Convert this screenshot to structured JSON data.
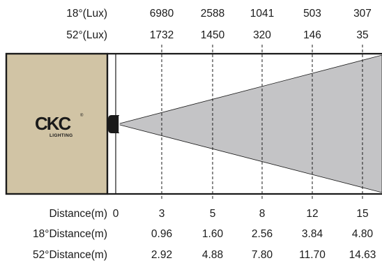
{
  "rows": {
    "lux18_label": "18°(Lux)",
    "lux52_label": "52°(Lux)",
    "distance_label": "Distance(m)",
    "dist18_label": "18°Distance(m)",
    "dist52_label": "52°Distance(m)"
  },
  "origin_label": "0",
  "columns": [
    {
      "distance": "3",
      "lux18": "6980",
      "lux52": "1732",
      "dist18": "0.96",
      "dist52": "2.92"
    },
    {
      "distance": "5",
      "lux18": "2588",
      "lux52": "1450",
      "dist18": "1.60",
      "dist52": "4.88"
    },
    {
      "distance": "8",
      "lux18": "1041",
      "lux52": "320",
      "dist18": "2.56",
      "dist52": "7.80"
    },
    {
      "distance": "12",
      "lux18": "503",
      "lux52": "146",
      "dist18": "3.84",
      "dist52": "11.70"
    },
    {
      "distance": "15",
      "lux18": "307",
      "lux52": "35",
      "dist18": "4.80",
      "dist52": "14.63"
    }
  ],
  "logo": {
    "brand": "CKC",
    "sub": "LIGHTING",
    "mark": "®"
  },
  "colors": {
    "wall": "#d1c4a5",
    "beam": "#c4c4c6",
    "line": "#1a1a1a"
  }
}
